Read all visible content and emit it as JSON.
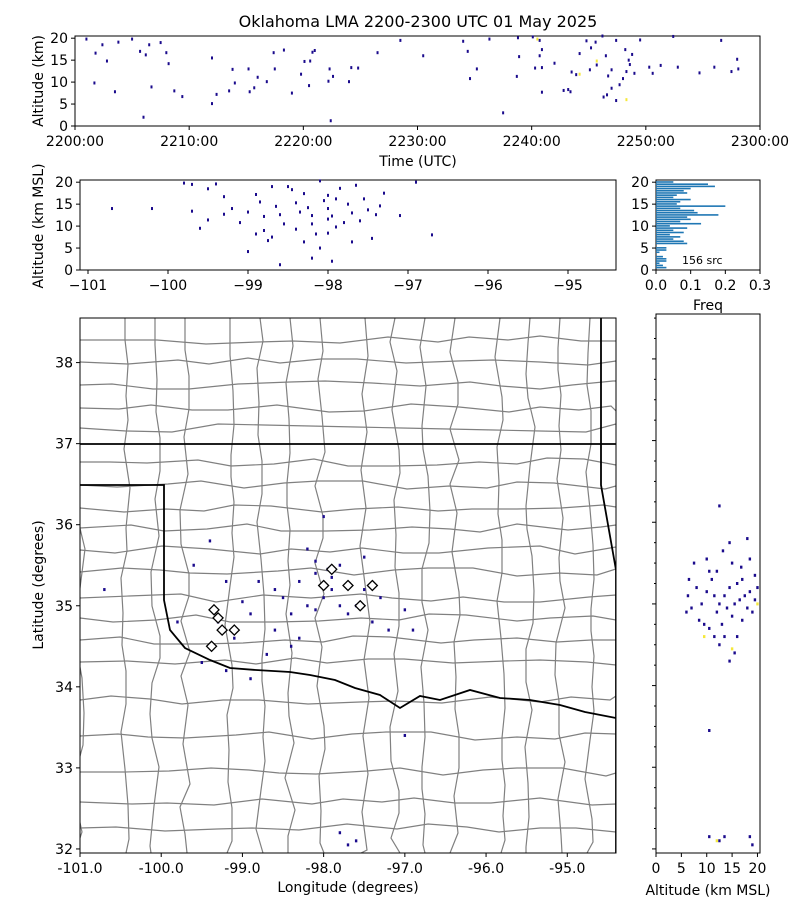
{
  "chart_data": [
    {
      "panel": "time-height",
      "type": "scatter",
      "title": "Oklahoma LMA 2200-2300 UTC 01 May 2025",
      "xlabel": "Time (UTC)",
      "ylabel": "Altitude (km)",
      "xticks": [
        "2200:00",
        "2210:00",
        "2220:00",
        "2230:00",
        "2240:00",
        "2250:00",
        "2300:00"
      ],
      "xlim_minutes": [
        0,
        60
      ],
      "yticks": [
        0,
        5,
        10,
        15,
        20
      ],
      "ylim": [
        0,
        20.5
      ],
      "points": [
        [
          1.0,
          19.8
        ],
        [
          2.4,
          18.5
        ],
        [
          3.8,
          19.1
        ],
        [
          5.0,
          19.8
        ],
        [
          6.5,
          18.5
        ],
        [
          7.5,
          19.0
        ],
        [
          1.8,
          16.6
        ],
        [
          2.8,
          14.8
        ],
        [
          6.2,
          16.2
        ],
        [
          8.2,
          14.2
        ],
        [
          8.0,
          16.7
        ],
        [
          5.7,
          17.0
        ],
        [
          1.7,
          9.8
        ],
        [
          3.5,
          7.8
        ],
        [
          6.7,
          8.9
        ],
        [
          8.7,
          8.0
        ],
        [
          9.4,
          6.7
        ],
        [
          12.4,
          7.2
        ],
        [
          13.5,
          8.0
        ],
        [
          12.0,
          15.5
        ],
        [
          13.8,
          12.9
        ],
        [
          16.0,
          11.1
        ],
        [
          16.8,
          10.1
        ],
        [
          17.5,
          13.0
        ],
        [
          18.3,
          17.3
        ],
        [
          20.6,
          14.8
        ],
        [
          21.0,
          17.2
        ],
        [
          20.8,
          16.8
        ],
        [
          20.5,
          9.2
        ],
        [
          22.2,
          10.2
        ],
        [
          22.4,
          1.2
        ],
        [
          22.6,
          11.3
        ],
        [
          19.8,
          11.8
        ],
        [
          15.7,
          8.7
        ],
        [
          15.3,
          7.8
        ],
        [
          14.0,
          9.8
        ],
        [
          12.0,
          5.1
        ],
        [
          6.0,
          2.0
        ],
        [
          28.5,
          19.5
        ],
        [
          30.5,
          16.0
        ],
        [
          34.0,
          19.3
        ],
        [
          35.2,
          13.0
        ],
        [
          34.6,
          10.8
        ],
        [
          38.9,
          15.8
        ],
        [
          38.7,
          11.3
        ],
        [
          40.7,
          19.5
        ],
        [
          40.9,
          17.4
        ],
        [
          40.7,
          16.0
        ],
        [
          40.3,
          13.2
        ],
        [
          40.9,
          7.7
        ],
        [
          42.0,
          14.3
        ],
        [
          42.8,
          8.1
        ],
        [
          43.4,
          7.8
        ],
        [
          43.5,
          12.3
        ],
        [
          44.2,
          16.5
        ],
        [
          44.8,
          19.4
        ],
        [
          45.2,
          17.8
        ],
        [
          45.7,
          13.9
        ],
        [
          45.6,
          19.1
        ],
        [
          46.2,
          20.5
        ],
        [
          46.5,
          16.0
        ],
        [
          47.0,
          12.8
        ],
        [
          46.7,
          11.4
        ],
        [
          46.3,
          6.6
        ],
        [
          47.0,
          8.6
        ],
        [
          47.4,
          5.8
        ],
        [
          47.7,
          9.4
        ],
        [
          48.0,
          10.8
        ],
        [
          48.3,
          12.4
        ],
        [
          48.6,
          14.0
        ],
        [
          48.5,
          15.0
        ],
        [
          49.0,
          12.0
        ],
        [
          48.8,
          16.3
        ],
        [
          48.2,
          17.4
        ],
        [
          47.4,
          19.5
        ],
        [
          50.6,
          12.0
        ],
        [
          50.3,
          13.4
        ],
        [
          51.3,
          13.8
        ],
        [
          52.8,
          13.4
        ],
        [
          49.5,
          19.6
        ],
        [
          52.4,
          20.4
        ],
        [
          54.7,
          12.1
        ],
        [
          56.0,
          13.4
        ],
        [
          56.6,
          19.5
        ],
        [
          58.0,
          15.2
        ],
        [
          58.1,
          13.0
        ],
        [
          57.5,
          12.4
        ],
        [
          43.9,
          11.7
        ],
        [
          45.1,
          12.8
        ],
        [
          43.2,
          8.3
        ],
        [
          46.6,
          7.1
        ],
        [
          40.9,
          13.3
        ],
        [
          24.0,
          10.1
        ],
        [
          24.2,
          13.3
        ],
        [
          19.0,
          7.5
        ],
        [
          37.5,
          3.0
        ],
        [
          17.4,
          16.7
        ],
        [
          15.2,
          13.0
        ],
        [
          20.1,
          14.7
        ],
        [
          22.3,
          13.0
        ],
        [
          24.8,
          13.2
        ],
        [
          40.1,
          20.3
        ],
        [
          26.5,
          16.7
        ],
        [
          34.4,
          17.0
        ],
        [
          38.8,
          20.1
        ],
        [
          36.3,
          19.8
        ]
      ],
      "highlight_points": [
        [
          44.2,
          11.8
        ],
        [
          48.3,
          6.0
        ],
        [
          45.7,
          14.8
        ],
        [
          40.5,
          19.8
        ]
      ]
    },
    {
      "panel": "lon-height",
      "type": "scatter",
      "xlabel": "",
      "ylabel": "Altitude (km MSL)",
      "xticks": [
        "−101",
        "−100",
        "−99",
        "−98",
        "−97",
        "−96",
        "−95"
      ],
      "xlim": [
        -101.1,
        -94.4
      ],
      "yticks": [
        0,
        5,
        10,
        15,
        20
      ],
      "ylim": [
        0,
        20.5
      ],
      "points": [
        [
          -100.7,
          14.0
        ],
        [
          -100.2,
          14.0
        ],
        [
          -99.8,
          19.8
        ],
        [
          -99.7,
          19.5
        ],
        [
          -99.5,
          18.5
        ],
        [
          -99.4,
          19.6
        ],
        [
          -99.3,
          16.7
        ],
        [
          -99.2,
          14.0
        ],
        [
          -99.1,
          10.8
        ],
        [
          -99.0,
          13.2
        ],
        [
          -98.9,
          17.2
        ],
        [
          -98.85,
          15.5
        ],
        [
          -98.8,
          12.2
        ],
        [
          -98.8,
          9.0
        ],
        [
          -98.75,
          6.7
        ],
        [
          -98.7,
          19.0
        ],
        [
          -98.65,
          14.5
        ],
        [
          -98.6,
          12.6
        ],
        [
          -98.55,
          10.5
        ],
        [
          -98.5,
          19.0
        ],
        [
          -98.45,
          18.3
        ],
        [
          -98.4,
          15.3
        ],
        [
          -98.35,
          13.2
        ],
        [
          -98.3,
          17.4
        ],
        [
          -98.25,
          14.2
        ],
        [
          -98.2,
          12.4
        ],
        [
          -98.2,
          10.5
        ],
        [
          -98.15,
          8.2
        ],
        [
          -98.1,
          20.3
        ],
        [
          -98.05,
          15.8
        ],
        [
          -98.0,
          14.0
        ],
        [
          -98.0,
          17.0
        ],
        [
          -97.95,
          12.3
        ],
        [
          -97.9,
          16.2
        ],
        [
          -97.85,
          18.6
        ],
        [
          -97.8,
          10.8
        ],
        [
          -97.75,
          15.0
        ],
        [
          -97.7,
          13.0
        ],
        [
          -97.65,
          19.3
        ],
        [
          -97.6,
          11.2
        ],
        [
          -97.55,
          16.2
        ],
        [
          -97.5,
          13.7
        ],
        [
          -97.45,
          7.2
        ],
        [
          -97.4,
          12.6
        ],
        [
          -97.35,
          14.6
        ],
        [
          -97.3,
          17.5
        ],
        [
          -97.1,
          12.4
        ],
        [
          -96.9,
          20.0
        ],
        [
          -96.7,
          8.0
        ],
        [
          -98.0,
          8.4
        ],
        [
          -98.1,
          5.0
        ],
        [
          -97.95,
          2.0
        ],
        [
          -98.6,
          1.2
        ],
        [
          -99.5,
          11.4
        ],
        [
          -99.3,
          12.7
        ],
        [
          -98.7,
          7.5
        ],
        [
          -98.4,
          9.3
        ],
        [
          -97.9,
          9.8
        ],
        [
          -98.3,
          6.4
        ],
        [
          -98.9,
          8.2
        ],
        [
          -99.0,
          4.2
        ],
        [
          -98.2,
          2.7
        ],
        [
          -97.7,
          6.4
        ],
        [
          -99.6,
          9.5
        ],
        [
          -99.7,
          13.4
        ],
        [
          -98.0,
          11.6
        ]
      ]
    },
    {
      "panel": "altitude-histogram",
      "type": "bar",
      "xlabel": "Freq",
      "annotation": "156 src",
      "xticks": [
        "0.0",
        "0.1",
        "0.2",
        "0.3"
      ],
      "xlim": [
        0,
        0.3
      ],
      "ylim": [
        0,
        20.5
      ],
      "altitudes": [
        20,
        19.5,
        19,
        18.5,
        18,
        17.5,
        17,
        16.5,
        16,
        15.5,
        15,
        14.5,
        14,
        13.5,
        13,
        12.5,
        12,
        11.5,
        11,
        10.5,
        10,
        9.5,
        9,
        8.5,
        8,
        7.5,
        7,
        6.5,
        6,
        5,
        4.5,
        4,
        3,
        2.5,
        2,
        1.5,
        1,
        0.5
      ],
      "freqs": [
        0.05,
        0.15,
        0.17,
        0.1,
        0.08,
        0.09,
        0.06,
        0.05,
        0.1,
        0.07,
        0.06,
        0.2,
        0.07,
        0.11,
        0.12,
        0.18,
        0.09,
        0.1,
        0.07,
        0.13,
        0.04,
        0.09,
        0.05,
        0.08,
        0.04,
        0.07,
        0.05,
        0.08,
        0.09,
        0.03,
        0.03,
        0.01,
        0.02,
        0.03,
        0.03,
        0.01,
        0.02,
        0.03
      ]
    },
    {
      "panel": "plan-view",
      "type": "scatter",
      "xlabel": "Longitude (degrees)",
      "ylabel": "Latitude (degrees)",
      "xticks": [
        "-101.0",
        "-100.0",
        "-99.0",
        "-98.0",
        "-97.0",
        "-96.0",
        "-95.0"
      ],
      "xlim": [
        -101.0,
        -94.4
      ],
      "yticks": [
        32,
        33,
        34,
        35,
        36,
        37,
        38
      ],
      "ylim": [
        31.95,
        38.55
      ],
      "points": [
        [
          -99.4,
          35.8
        ],
        [
          -99.2,
          35.3
        ],
        [
          -99.0,
          35.05
        ],
        [
          -98.9,
          34.9
        ],
        [
          -98.8,
          35.3
        ],
        [
          -98.6,
          35.2
        ],
        [
          -98.5,
          35.1
        ],
        [
          -98.4,
          34.9
        ],
        [
          -98.3,
          35.3
        ],
        [
          -98.2,
          35.0
        ],
        [
          -98.1,
          34.95
        ],
        [
          -98.0,
          35.1
        ],
        [
          -97.9,
          35.2
        ],
        [
          -97.8,
          35.5
        ],
        [
          -97.7,
          34.9
        ],
        [
          -97.6,
          35.0
        ],
        [
          -97.5,
          35.2
        ],
        [
          -97.4,
          34.8
        ],
        [
          -97.3,
          35.1
        ],
        [
          -97.0,
          34.95
        ],
        [
          -99.6,
          35.5
        ],
        [
          -99.5,
          34.3
        ],
        [
          -99.3,
          34.8
        ],
        [
          -99.1,
          34.6
        ],
        [
          -98.7,
          34.4
        ],
        [
          -98.2,
          35.7
        ],
        [
          -97.9,
          35.35
        ],
        [
          -97.5,
          35.6
        ],
        [
          -97.2,
          34.7
        ],
        [
          -96.9,
          34.7
        ],
        [
          -98.0,
          36.1
        ],
        [
          -100.7,
          35.2
        ],
        [
          -99.8,
          34.8
        ],
        [
          -98.4,
          34.5
        ],
        [
          -98.6,
          34.7
        ],
        [
          -98.3,
          34.6
        ],
        [
          -98.1,
          35.4
        ],
        [
          -97.8,
          35.0
        ],
        [
          -99.2,
          34.2
        ],
        [
          -98.9,
          34.1
        ],
        [
          -97.0,
          33.4
        ],
        [
          -97.8,
          32.2
        ],
        [
          -97.6,
          32.1
        ],
        [
          -97.7,
          32.05
        ],
        [
          -98.1,
          35.55
        ],
        [
          -97.95,
          35.45
        ]
      ],
      "diamonds": [
        [
          -99.35,
          34.95
        ],
        [
          -99.3,
          34.85
        ],
        [
          -99.25,
          34.7
        ],
        [
          -99.38,
          34.5
        ],
        [
          -99.1,
          34.7
        ],
        [
          -98.0,
          35.25
        ],
        [
          -97.9,
          35.45
        ],
        [
          -97.7,
          35.25
        ],
        [
          -97.55,
          35.0
        ],
        [
          -97.4,
          35.25
        ]
      ]
    },
    {
      "panel": "altitude-latitude",
      "type": "scatter",
      "xlabel": "Altitude (km MSL)",
      "xticks": [
        "0",
        "5",
        "10",
        "15",
        "20"
      ],
      "xlim": [
        0,
        20.5
      ],
      "ylim": [
        31.95,
        38.55
      ],
      "points": [
        [
          12.5,
          36.2
        ],
        [
          14.5,
          35.75
        ],
        [
          7.5,
          35.5
        ],
        [
          10.5,
          35.4
        ],
        [
          13.2,
          35.65
        ],
        [
          16.8,
          35.45
        ],
        [
          18.0,
          35.8
        ],
        [
          18.5,
          35.55
        ],
        [
          19.5,
          35.35
        ],
        [
          6.5,
          35.3
        ],
        [
          6.3,
          35.1
        ],
        [
          6.0,
          34.9
        ],
        [
          7.0,
          34.95
        ],
        [
          8.0,
          35.2
        ],
        [
          9.0,
          35.0
        ],
        [
          10.0,
          35.15
        ],
        [
          11.0,
          35.3
        ],
        [
          11.5,
          35.1
        ],
        [
          12.0,
          34.9
        ],
        [
          12.5,
          35.0
        ],
        [
          13.0,
          34.75
        ],
        [
          13.5,
          35.1
        ],
        [
          14.0,
          34.95
        ],
        [
          14.5,
          35.2
        ],
        [
          15.0,
          34.85
        ],
        [
          15.5,
          35.0
        ],
        [
          16.0,
          35.25
        ],
        [
          16.5,
          35.05
        ],
        [
          17.0,
          34.8
        ],
        [
          17.5,
          35.1
        ],
        [
          18.0,
          34.95
        ],
        [
          18.5,
          35.15
        ],
        [
          19.0,
          34.9
        ],
        [
          19.5,
          35.05
        ],
        [
          20.0,
          35.2
        ],
        [
          10.5,
          34.7
        ],
        [
          11.5,
          34.6
        ],
        [
          12.5,
          34.5
        ],
        [
          13.5,
          34.6
        ],
        [
          14.5,
          34.3
        ],
        [
          15.5,
          34.4
        ],
        [
          16.0,
          34.6
        ],
        [
          9.5,
          34.75
        ],
        [
          8.5,
          34.8
        ],
        [
          10.5,
          33.45
        ],
        [
          10.5,
          32.15
        ],
        [
          12.5,
          32.1
        ],
        [
          13.5,
          32.15
        ],
        [
          18.5,
          32.15
        ],
        [
          19.0,
          32.05
        ],
        [
          10.0,
          35.55
        ],
        [
          12.0,
          35.4
        ],
        [
          15.0,
          35.5
        ],
        [
          17.0,
          35.3
        ]
      ],
      "highlight_points": [
        [
          15.0,
          34.45
        ],
        [
          20.0,
          35.0
        ],
        [
          12.0,
          32.1
        ],
        [
          9.5,
          34.6
        ]
      ]
    }
  ],
  "colors": {
    "points": "#1a0a8c",
    "highlight": "#f5e83a",
    "hist": "#1f77b4",
    "county": "#808080",
    "state": "#000000"
  }
}
